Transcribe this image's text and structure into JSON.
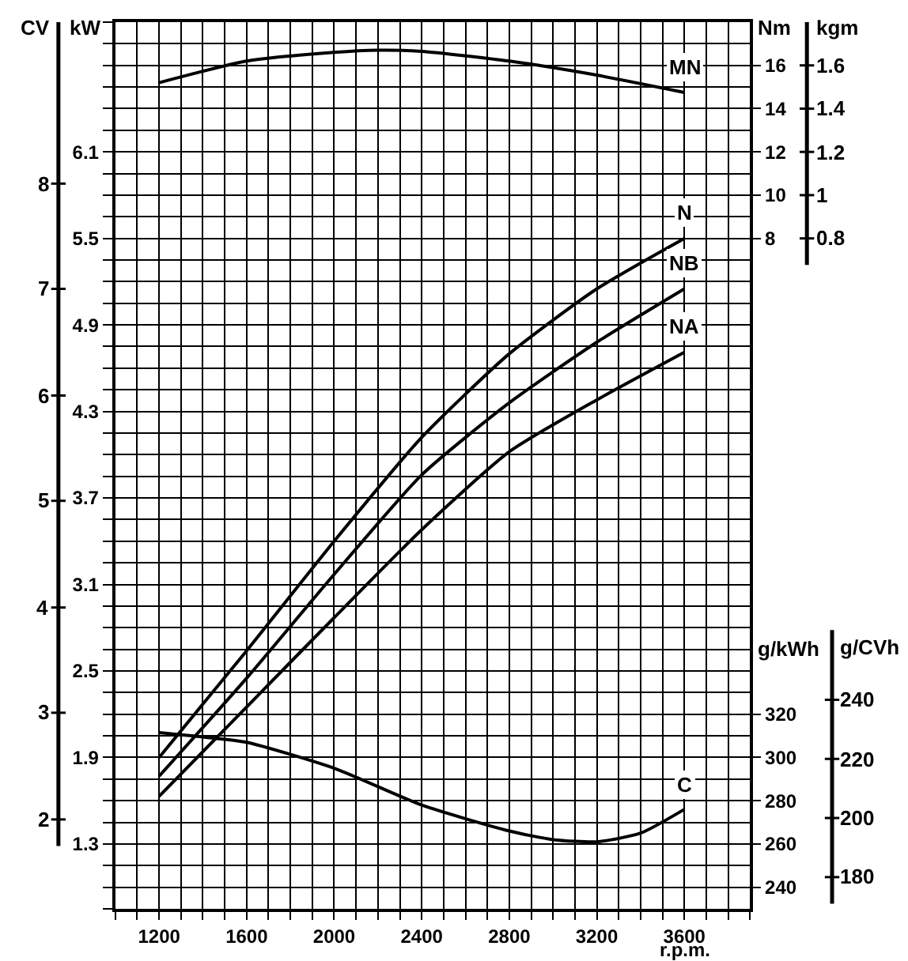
{
  "chart_data": {
    "type": "line",
    "xlabel": "r.p.m.",
    "ylabel": "kW",
    "y2label": "Nm",
    "y3label": "g/kWh",
    "xlim": [
      1000,
      3900
    ],
    "xticks": [
      {
        "value": 1000,
        "label": null
      },
      {
        "value": 1100,
        "label": null
      },
      1200,
      {
        "value": 1300,
        "label": null
      },
      {
        "value": 1400,
        "label": null
      },
      {
        "value": 1500,
        "label": null
      },
      1600,
      {
        "value": 1700,
        "label": null
      },
      {
        "value": 1800,
        "label": null
      },
      {
        "value": 1900,
        "label": null
      },
      2000,
      {
        "value": 2100,
        "label": null
      },
      {
        "value": 2200,
        "label": null
      },
      {
        "value": 2300,
        "label": null
      },
      2400,
      {
        "value": 2500,
        "label": null
      },
      {
        "value": 2600,
        "label": null
      },
      {
        "value": 2700,
        "label": null
      },
      2800,
      {
        "value": 2900,
        "label": null
      },
      {
        "value": 3000,
        "label": null
      },
      {
        "value": 3100,
        "label": null
      },
      3200,
      {
        "value": 3300,
        "label": null
      },
      {
        "value": 3400,
        "label": null
      },
      {
        "value": 3500,
        "label": null
      },
      3600,
      {
        "value": 3700,
        "label": null
      },
      {
        "value": 3800,
        "label": null
      },
      {
        "value": 3900,
        "label": null
      }
    ],
    "ylim": [
      0.85,
      7.0
    ],
    "yticks": [
      {
        "value": 0.85,
        "label": null
      },
      {
        "value": 1.0,
        "label": null
      },
      {
        "value": 1.15,
        "label": null
      },
      1.3,
      {
        "value": 1.45,
        "label": null
      },
      {
        "value": 1.6,
        "label": null
      },
      {
        "value": 1.75,
        "label": null
      },
      1.9,
      {
        "value": 2.05,
        "label": null
      },
      {
        "value": 2.2,
        "label": null
      },
      {
        "value": 2.35,
        "label": null
      },
      2.5,
      {
        "value": 2.65,
        "label": null
      },
      {
        "value": 2.8,
        "label": null
      },
      {
        "value": 2.95,
        "label": null
      },
      3.1,
      {
        "value": 3.25,
        "label": null
      },
      {
        "value": 3.4,
        "label": null
      },
      {
        "value": 3.55,
        "label": null
      },
      3.7,
      {
        "value": 3.85,
        "label": null
      },
      {
        "value": 4.0,
        "label": null
      },
      {
        "value": 4.15,
        "label": null
      },
      4.3,
      {
        "value": 4.45,
        "label": null
      },
      {
        "value": 4.6,
        "label": null
      },
      {
        "value": 4.75,
        "label": null
      },
      4.9,
      {
        "value": 5.05,
        "label": null
      },
      {
        "value": 5.2,
        "label": null
      },
      {
        "value": 5.35,
        "label": null
      },
      5.5,
      {
        "value": 5.65,
        "label": null
      },
      {
        "value": 5.8,
        "label": null
      },
      {
        "value": 5.95,
        "label": null
      },
      6.1,
      {
        "value": 6.25,
        "label": null
      },
      {
        "value": 6.4,
        "label": null
      },
      {
        "value": 6.55,
        "label": null
      },
      {
        "value": 6.7,
        "label": null
      },
      {
        "value": 6.85,
        "label": null
      },
      {
        "value": 7.0,
        "label": null
      }
    ],
    "y2lim": [
      -23,
      18
    ],
    "y2ticks": [
      8,
      10,
      12,
      14,
      16
    ],
    "y3lim": [
      230,
      640
    ],
    "y3ticks": [
      240,
      260,
      280,
      300,
      320
    ],
    "grid": true,
    "annotations": [
      "CV",
      "8",
      "7",
      "6",
      "5",
      "4",
      "3",
      "2",
      "kgm",
      "1.6",
      "1.4",
      "1.2",
      "1",
      "0.8",
      "g/CVh",
      "240",
      "220",
      "200",
      "180"
    ],
    "series": [
      {
        "name": "MN",
        "color": "#000000",
        "axis": "y2",
        "x": [
          1200,
          1600,
          2000,
          2200,
          2400,
          2800,
          3200,
          3600
        ],
        "values": [
          15.2,
          16.2,
          16.6,
          16.7,
          16.65,
          16.2,
          15.55,
          14.75
        ]
      },
      {
        "name": "N",
        "color": "#000000",
        "x": [
          1200,
          1600,
          2000,
          2400,
          2800,
          3200,
          3600
        ],
        "values": [
          1.9,
          2.64,
          3.4,
          4.12,
          4.7,
          5.15,
          5.5
        ]
      },
      {
        "name": "NB",
        "color": "#000000",
        "x": [
          1200,
          1600,
          2000,
          2400,
          2800,
          3200,
          3600
        ],
        "values": [
          1.77,
          2.45,
          3.17,
          3.86,
          4.36,
          4.78,
          5.15
        ]
      },
      {
        "name": "NA",
        "color": "#000000",
        "x": [
          1200,
          1600,
          2000,
          2400,
          2800,
          3200,
          3600
        ],
        "values": [
          1.63,
          2.25,
          2.87,
          3.48,
          4.02,
          4.38,
          4.71
        ]
      },
      {
        "name": "C",
        "color": "#000000",
        "axis": "y3",
        "x": [
          1200,
          1400,
          1600,
          2000,
          2400,
          2800,
          3000,
          3200,
          3400,
          3600
        ],
        "values": [
          311.5,
          309.5,
          307,
          295,
          278,
          266,
          262,
          261,
          265,
          276
        ]
      }
    ]
  }
}
